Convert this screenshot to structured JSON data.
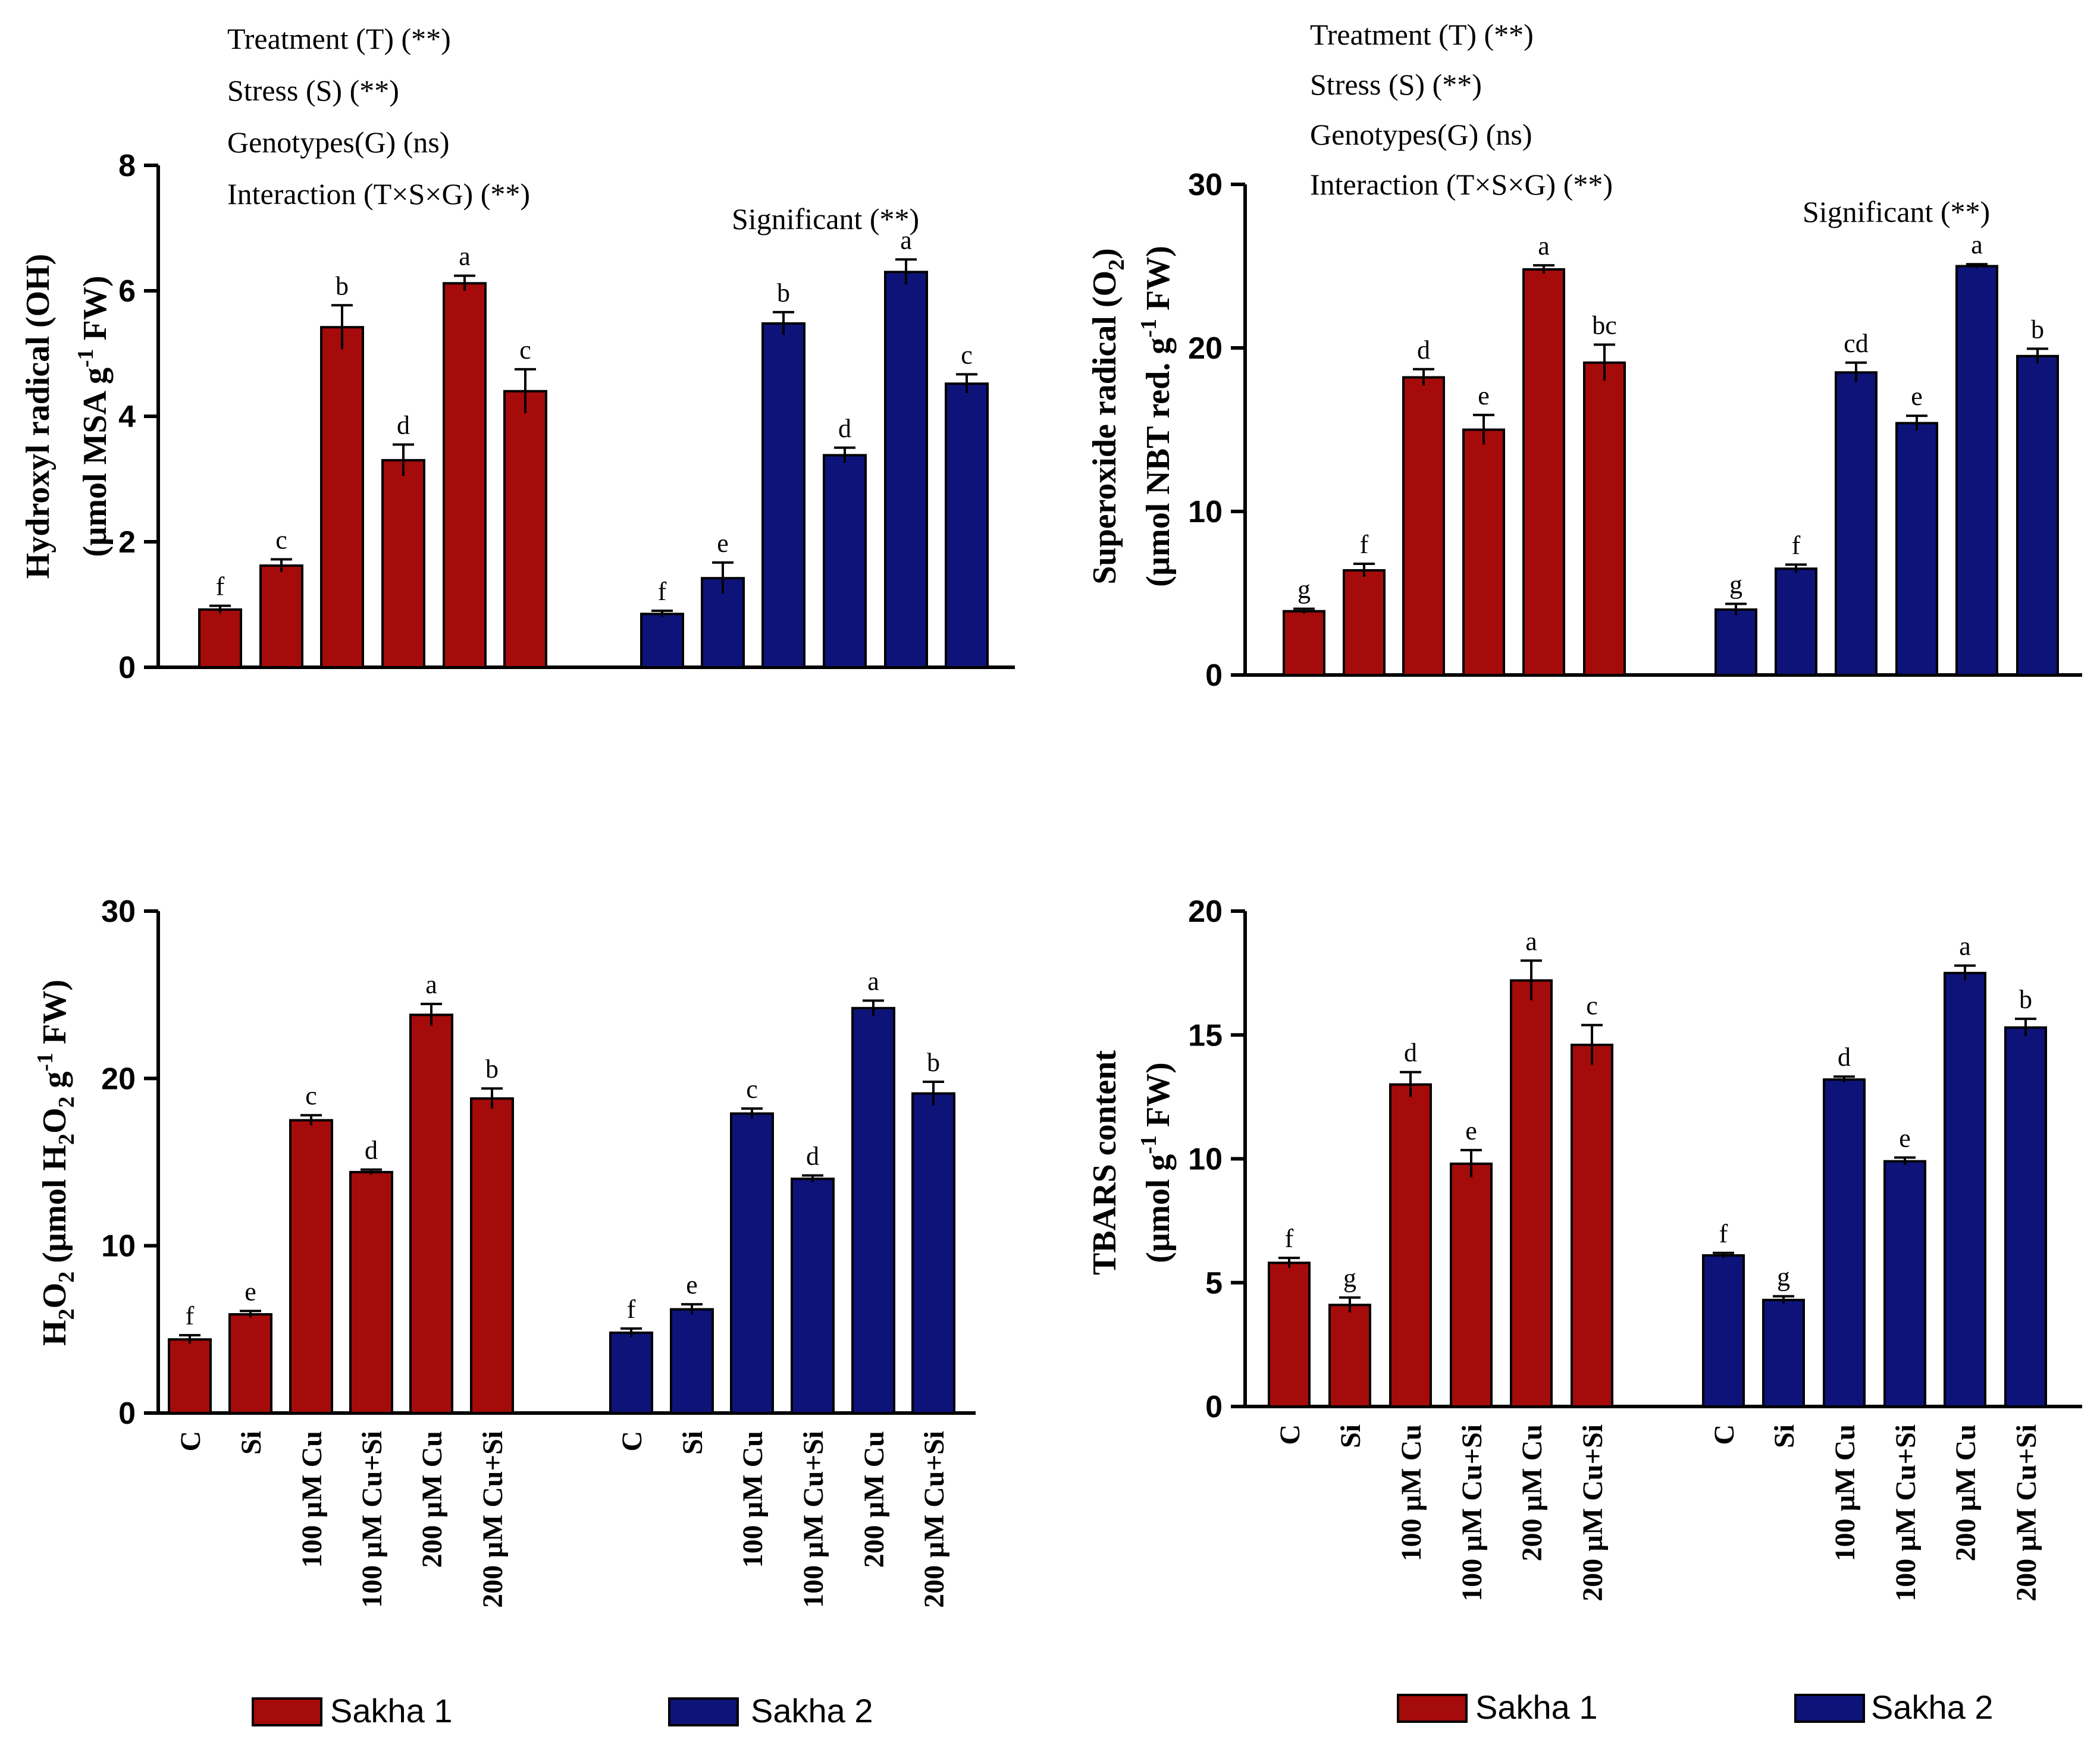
{
  "chart_data": [
    {
      "type": "bar",
      "panel": "top-left",
      "title": "",
      "ylabel_line1": "Hydroxyl radical (OH)",
      "ylabel_line2_a": "(µmol MSA  g",
      "ylabel_line2_sup": "-1",
      "ylabel_line2_b": " FW)",
      "ylim": [
        0,
        8
      ],
      "yticks": [
        "0",
        "2",
        "4",
        "6",
        "8"
      ],
      "xlabel": "",
      "categories": [
        "C",
        "Si",
        "100 µM Cu",
        "100 µM Cu+Si",
        "200 µM Cu",
        "200 µM Cu+Si"
      ],
      "show_category_labels": false,
      "stats_lines": [
        "Treatment (T) (**)",
        "Stress (S) (**)",
        "Genotypes(G) (ns)",
        "Interaction (T×S×G) (**)"
      ],
      "significance_note": "Significant (**)",
      "series": [
        {
          "name": "Sakha 1",
          "values": [
            0.92,
            1.62,
            5.42,
            3.3,
            6.12,
            4.4
          ],
          "errors": [
            0.06,
            0.1,
            0.35,
            0.25,
            0.12,
            0.35
          ],
          "letters": [
            "f",
            "c",
            "b",
            "d",
            "a",
            "c"
          ]
        },
        {
          "name": "Sakha 2",
          "values": [
            0.85,
            1.42,
            5.48,
            3.38,
            6.3,
            4.52
          ],
          "errors": [
            0.05,
            0.25,
            0.18,
            0.12,
            0.2,
            0.15
          ],
          "letters": [
            "f",
            "e",
            "b",
            "d",
            "a",
            "c"
          ]
        }
      ]
    },
    {
      "type": "bar",
      "panel": "top-right",
      "title": "",
      "ylabel_line1": "Superoxide radical (O",
      "ylabel_line1_sub": "2",
      "ylabel_line1_end": ")",
      "ylabel_line2_a": "(µmol NBT red.  g",
      "ylabel_line2_sup": "-1",
      "ylabel_line2_b": " FW)",
      "ylim": [
        0,
        30
      ],
      "yticks": [
        "0",
        "10",
        "20",
        "30"
      ],
      "xlabel": "",
      "categories": [
        "C",
        "Si",
        "100 µM Cu",
        "100 µM Cu+Si",
        "200 µM Cu",
        "200 µM Cu+Si"
      ],
      "show_category_labels": false,
      "stats_lines": [
        "Treatment (T) (**)",
        "Stress (S) (**)",
        "Genotypes(G) (ns)",
        "Interaction (T×S×G) (**)"
      ],
      "significance_note": "Significant (**)",
      "series": [
        {
          "name": "Sakha 1",
          "values": [
            3.9,
            6.4,
            18.2,
            15.0,
            24.8,
            19.1
          ],
          "errors": [
            0.15,
            0.4,
            0.5,
            0.9,
            0.25,
            1.1
          ],
          "letters": [
            "g",
            "f",
            "d",
            "e",
            "a",
            "bc"
          ]
        },
        {
          "name": "Sakha 2",
          "values": [
            4.0,
            6.5,
            18.5,
            15.4,
            25.0,
            19.5
          ],
          "errors": [
            0.35,
            0.25,
            0.6,
            0.45,
            0.12,
            0.45
          ],
          "letters": [
            "g",
            "f",
            "cd",
            "e",
            "a",
            "b"
          ]
        }
      ]
    },
    {
      "type": "bar",
      "panel": "bottom-left",
      "title": "",
      "ylabel_a": "H",
      "ylabel_sub1": "2",
      "ylabel_b": "O",
      "ylabel_sub2": "2",
      "ylabel_c": " (µmol H",
      "ylabel_sub3": "2",
      "ylabel_d": "O",
      "ylabel_sub4": "2",
      "ylabel_e": " g",
      "ylabel_sup": "-1",
      "ylabel_f": " FW)",
      "ylim": [
        0,
        30
      ],
      "yticks": [
        "0",
        "10",
        "20",
        "30"
      ],
      "xlabel": "",
      "categories": [
        "C",
        "Si",
        "100 µM Cu",
        "100 µM Cu+Si",
        "200 µM Cu",
        "200 µM Cu+Si"
      ],
      "show_category_labels": true,
      "series": [
        {
          "name": "Sakha 1",
          "values": [
            4.4,
            5.9,
            17.5,
            14.4,
            23.8,
            18.8
          ],
          "errors": [
            0.25,
            0.2,
            0.3,
            0.15,
            0.65,
            0.6
          ],
          "letters": [
            "f",
            "e",
            "c",
            "d",
            "a",
            "b"
          ]
        },
        {
          "name": "Sakha 2",
          "values": [
            4.8,
            6.2,
            17.9,
            14.0,
            24.2,
            19.1
          ],
          "errors": [
            0.25,
            0.3,
            0.3,
            0.2,
            0.45,
            0.7
          ],
          "letters": [
            "f",
            "e",
            "c",
            "d",
            "a",
            "b"
          ]
        }
      ]
    },
    {
      "type": "bar",
      "panel": "bottom-right",
      "title": "",
      "ylabel_line1": "TBARS content",
      "ylabel_line2_a": "(µmol  g",
      "ylabel_line2_sup": "-1",
      "ylabel_line2_b": " FW)",
      "ylim": [
        0,
        20
      ],
      "yticks": [
        "0",
        "5",
        "10",
        "15",
        "20"
      ],
      "xlabel": "",
      "categories": [
        "C",
        "Si",
        "100 µM Cu",
        "100 µM Cu+Si",
        "200 µM Cu",
        "200 µM Cu+Si"
      ],
      "show_category_labels": true,
      "series": [
        {
          "name": "Sakha 1",
          "values": [
            5.8,
            4.1,
            13.0,
            9.8,
            17.2,
            14.6
          ],
          "errors": [
            0.2,
            0.3,
            0.5,
            0.55,
            0.8,
            0.8
          ],
          "letters": [
            "f",
            "g",
            "d",
            "e",
            "a",
            "c"
          ]
        },
        {
          "name": "Sakha 2",
          "values": [
            6.1,
            4.3,
            13.2,
            9.9,
            17.5,
            15.3
          ],
          "errors": [
            0.1,
            0.15,
            0.12,
            0.15,
            0.3,
            0.35
          ],
          "letters": [
            "f",
            "g",
            "d",
            "e",
            "a",
            "b"
          ]
        }
      ]
    }
  ],
  "legend": {
    "items": [
      {
        "name": "Sakha 1",
        "color": "#a50b0b"
      },
      {
        "name": "Sakha 2",
        "color": "#0e137a"
      }
    ]
  },
  "colors": {
    "Sakha 1": "#a50b0b",
    "Sakha 2": "#0e137a"
  }
}
